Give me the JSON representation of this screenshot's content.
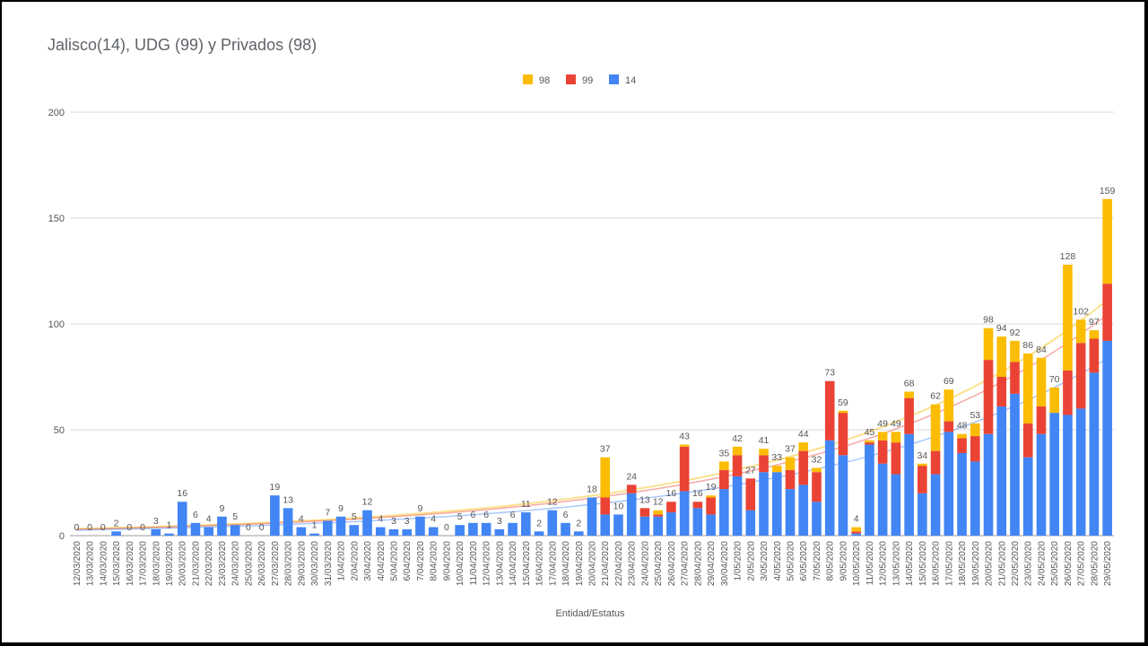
{
  "colors": {
    "s14": "#4285f4",
    "s99": "#ea4335",
    "s98": "#fbbc04",
    "grid": "#d9d9d9",
    "text": "#5f6368"
  },
  "chart_data": {
    "type": "bar",
    "stacked": true,
    "title": "Jalisco(14), UDG (99) y Privados (98)",
    "xlabel": "Entidad/Estatus",
    "ylabel": "",
    "ylim": [
      0,
      200
    ],
    "yticks": [
      0,
      50,
      100,
      150,
      200
    ],
    "grid": true,
    "legend_position": "top",
    "legend": [
      "98",
      "99",
      "14"
    ],
    "trendlines": true,
    "categories": [
      "12/03/2020",
      "13/03/2020",
      "14/03/2020",
      "15/03/2020",
      "16/03/2020",
      "17/03/2020",
      "18/03/2020",
      "19/03/2020",
      "20/03/2020",
      "21/03/2020",
      "22/03/2020",
      "23/03/2020",
      "24/03/2020",
      "25/03/2020",
      "26/03/2020",
      "27/03/2020",
      "28/03/2020",
      "29/03/2020",
      "30/03/2020",
      "31/03/2020",
      "1/04/2020",
      "2/04/2020",
      "3/04/2020",
      "4/04/2020",
      "5/04/2020",
      "6/04/2020",
      "7/04/2020",
      "8/04/2020",
      "9/04/2020",
      "10/04/2020",
      "11/04/2020",
      "12/04/2020",
      "13/04/2020",
      "14/04/2020",
      "15/04/2020",
      "16/04/2020",
      "17/04/2020",
      "18/04/2020",
      "19/04/2020",
      "20/04/2020",
      "21/04/2020",
      "22/04/2020",
      "23/04/2020",
      "24/04/2020",
      "25/04/2020",
      "26/04/2020",
      "27/04/2020",
      "28/04/2020",
      "29/04/2020",
      "30/04/2020",
      "1/05/2020",
      "2/05/2020",
      "3/05/2020",
      "4/05/2020",
      "5/05/2020",
      "6/05/2020",
      "7/05/2020",
      "8/05/2020",
      "9/05/2020",
      "10/05/2020",
      "11/05/2020",
      "12/05/2020",
      "13/05/2020",
      "14/05/2020",
      "15/05/2020",
      "16/05/2020",
      "17/05/2020",
      "18/05/2020",
      "19/05/2020",
      "20/05/2020",
      "21/05/2020",
      "22/05/2020",
      "23/05/2020",
      "24/05/2020",
      "25/05/2020",
      "26/05/2020",
      "27/05/2020",
      "28/05/2020",
      "29/05/2020"
    ],
    "totals": [
      0,
      0,
      0,
      2,
      0,
      0,
      3,
      1,
      16,
      6,
      4,
      9,
      5,
      0,
      0,
      19,
      13,
      4,
      1,
      7,
      9,
      5,
      12,
      4,
      3,
      3,
      9,
      4,
      0,
      5,
      6,
      6,
      3,
      6,
      11,
      2,
      12,
      6,
      2,
      18,
      37,
      10,
      24,
      13,
      12,
      16,
      43,
      16,
      19,
      35,
      42,
      27,
      41,
      33,
      37,
      44,
      32,
      73,
      59,
      4,
      45,
      49,
      49,
      68,
      34,
      62,
      69,
      48,
      53,
      98,
      94,
      92,
      86,
      84,
      70,
      128,
      102,
      97,
      159
    ],
    "series": [
      {
        "name": "14",
        "values": [
          0,
          0,
          0,
          2,
          0,
          0,
          3,
          1,
          16,
          6,
          4,
          9,
          5,
          0,
          0,
          19,
          13,
          4,
          1,
          7,
          9,
          5,
          12,
          4,
          3,
          3,
          9,
          4,
          0,
          5,
          6,
          6,
          3,
          6,
          11,
          2,
          12,
          6,
          2,
          18,
          10,
          10,
          20,
          9,
          9,
          11,
          21,
          13,
          10,
          22,
          28,
          12,
          30,
          30,
          22,
          24,
          16,
          45,
          38,
          1,
          43,
          34,
          29,
          48,
          20,
          29,
          49,
          39,
          35,
          48,
          61,
          67,
          37,
          48,
          58,
          57,
          60,
          77,
          92
        ]
      },
      {
        "name": "99",
        "values": [
          0,
          0,
          0,
          0,
          0,
          0,
          0,
          0,
          0,
          0,
          0,
          0,
          0,
          0,
          0,
          0,
          0,
          0,
          0,
          0,
          0,
          0,
          0,
          0,
          0,
          0,
          0,
          0,
          0,
          0,
          0,
          0,
          0,
          0,
          0,
          0,
          0,
          0,
          0,
          0,
          8,
          0,
          4,
          4,
          1,
          5,
          21,
          3,
          8,
          9,
          10,
          15,
          8,
          0,
          9,
          16,
          14,
          28,
          20,
          1,
          1,
          11,
          15,
          17,
          13,
          11,
          5,
          7,
          12,
          35,
          14,
          15,
          16,
          13,
          0,
          21,
          31,
          16,
          27
        ]
      },
      {
        "name": "98",
        "values": [
          0,
          0,
          0,
          0,
          0,
          0,
          0,
          0,
          0,
          0,
          0,
          0,
          0,
          0,
          0,
          0,
          0,
          0,
          0,
          0,
          0,
          0,
          0,
          0,
          0,
          0,
          0,
          0,
          0,
          0,
          0,
          0,
          0,
          0,
          0,
          0,
          0,
          0,
          0,
          0,
          19,
          0,
          0,
          0,
          2,
          0,
          1,
          0,
          1,
          4,
          4,
          0,
          3,
          3,
          6,
          4,
          2,
          0,
          1,
          2,
          1,
          4,
          5,
          3,
          1,
          22,
          15,
          2,
          6,
          15,
          19,
          10,
          33,
          23,
          12,
          50,
          11,
          4,
          40
        ]
      }
    ]
  }
}
